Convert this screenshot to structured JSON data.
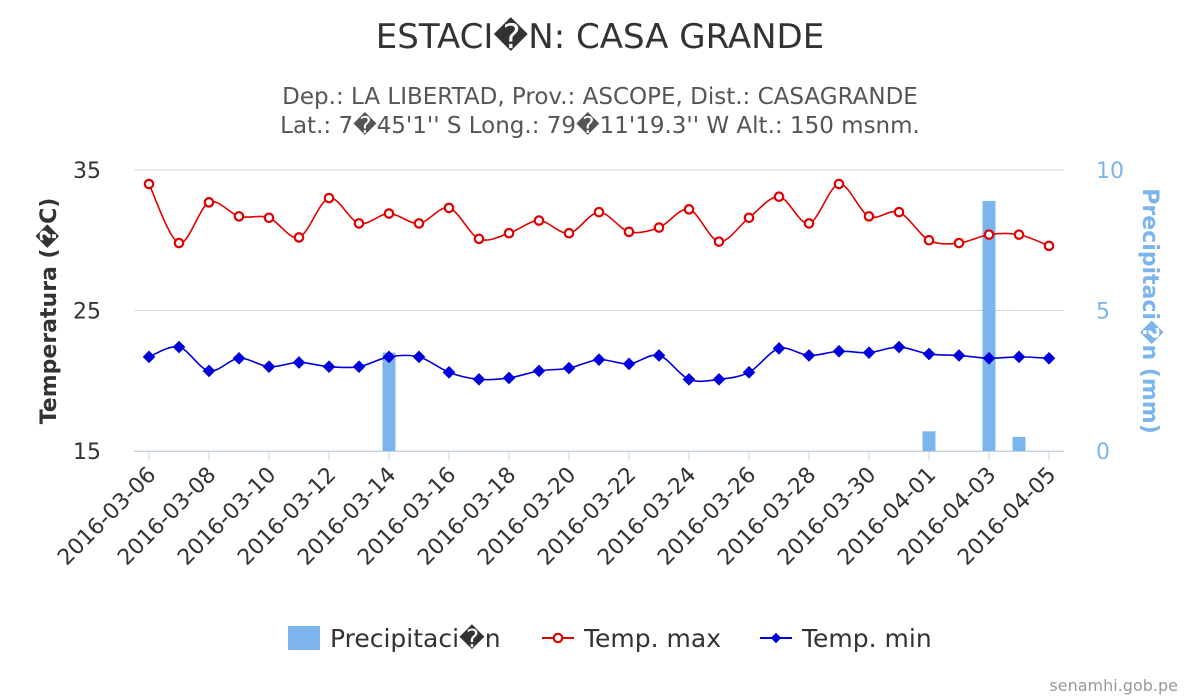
{
  "chart_data": {
    "type": "combo",
    "title": "ESTACI�N: CASA GRANDE",
    "subtitle_line1": "Dep.: LA LIBERTAD, Prov.: ASCOPE, Dist.: CASAGRANDE",
    "subtitle_line2": "Lat.: 7�45'1'' S Long.: 79�11'19.3'' W Alt.: 150 msnm.",
    "y_left": {
      "label": "Temperatura (�C)",
      "range": [
        15,
        35
      ],
      "ticks": [
        15,
        25,
        35
      ]
    },
    "y_right": {
      "label": "Precipitaci�n (mm)",
      "range": [
        0,
        10
      ],
      "ticks": [
        0,
        5,
        10
      ]
    },
    "x_dates": [
      "2016-03-06",
      "2016-03-07",
      "2016-03-08",
      "2016-03-09",
      "2016-03-10",
      "2016-03-11",
      "2016-03-12",
      "2016-03-13",
      "2016-03-14",
      "2016-03-15",
      "2016-03-16",
      "2016-03-17",
      "2016-03-18",
      "2016-03-19",
      "2016-03-20",
      "2016-03-21",
      "2016-03-22",
      "2016-03-23",
      "2016-03-24",
      "2016-03-25",
      "2016-03-26",
      "2016-03-27",
      "2016-03-28",
      "2016-03-29",
      "2016-03-30",
      "2016-03-31",
      "2016-04-01",
      "2016-04-02",
      "2016-04-03",
      "2016-04-04",
      "2016-04-05"
    ],
    "x_tick_labels": [
      "2016-03-06",
      "2016-03-08",
      "2016-03-10",
      "2016-03-12",
      "2016-03-14",
      "2016-03-16",
      "2016-03-18",
      "2016-03-20",
      "2016-03-22",
      "2016-03-24",
      "2016-03-26",
      "2016-03-28",
      "2016-03-30",
      "2016-04-01",
      "2016-04-03",
      "2016-04-05"
    ],
    "series": [
      {
        "name": "Precipitaci�n",
        "kind": "bar",
        "axis": "right",
        "color": "#7cb5ec",
        "points": [
          {
            "x": "2016-03-14",
            "y": 3.5
          },
          {
            "x": "2016-04-01",
            "y": 0.7
          },
          {
            "x": "2016-04-03",
            "y": 8.9
          },
          {
            "x": "2016-04-04",
            "y": 0.5
          }
        ]
      },
      {
        "name": "Temp. max",
        "kind": "line",
        "axis": "left",
        "color": "#e00000",
        "marker": "circle",
        "values": [
          34.0,
          29.8,
          32.7,
          31.7,
          31.6,
          30.2,
          33.0,
          31.2,
          31.9,
          31.2,
          32.3,
          30.1,
          30.5,
          31.4,
          30.5,
          32.0,
          30.6,
          30.9,
          32.2,
          29.9,
          31.6,
          33.1,
          31.2,
          34.0,
          31.7,
          32.0,
          30.0,
          29.8,
          30.4,
          30.4,
          29.6
        ]
      },
      {
        "name": "Temp. min",
        "kind": "line",
        "axis": "left",
        "color": "#0000dd",
        "marker": "diamond",
        "values": [
          21.7,
          22.4,
          20.7,
          21.6,
          21.0,
          21.3,
          21.0,
          21.0,
          21.7,
          21.7,
          20.6,
          20.1,
          20.2,
          20.7,
          20.9,
          21.5,
          21.2,
          21.8,
          20.1,
          20.1,
          20.6,
          22.3,
          21.8,
          22.1,
          22.0,
          22.4,
          21.9,
          21.8,
          21.6,
          21.7,
          21.6
        ]
      }
    ],
    "legend": {
      "position": "bottom"
    },
    "grid": true
  },
  "credit": "senamhi.gob.pe"
}
